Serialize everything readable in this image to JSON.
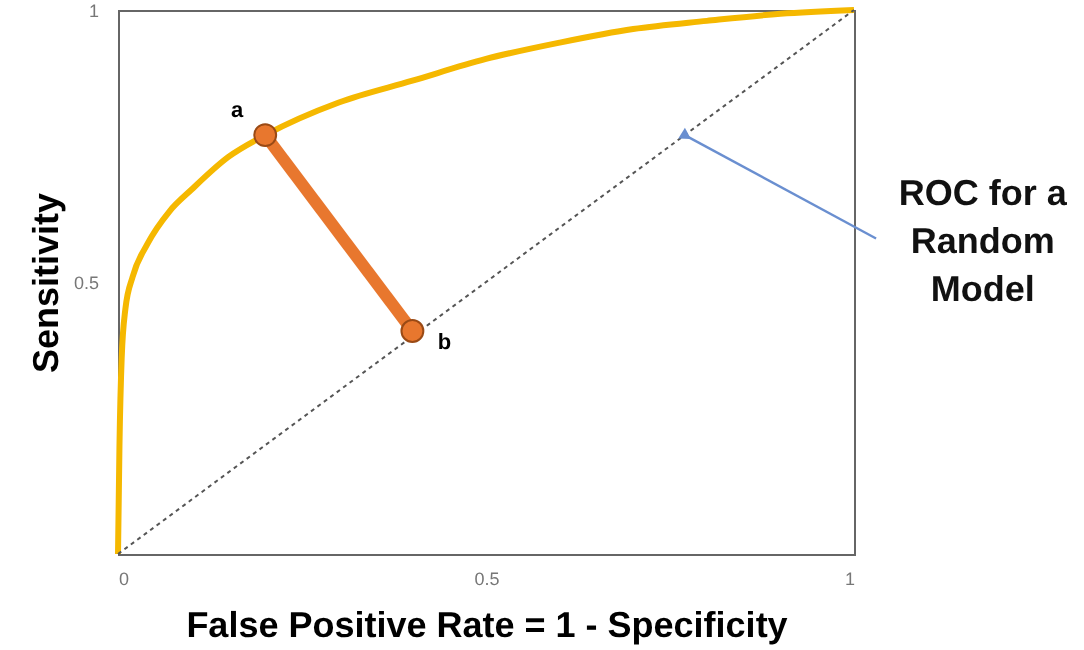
{
  "chart_data": {
    "type": "line",
    "xlabel": "False Positive Rate = 1 - Specificity",
    "ylabel": "Sensitivity",
    "xlim": [
      0,
      1
    ],
    "ylim": [
      0,
      1
    ],
    "xticks": [
      0,
      0.5,
      1
    ],
    "yticks": [
      0.5,
      1
    ],
    "grid": false,
    "series": [
      {
        "color": "#f5b800",
        "line_style": "solid",
        "marker": "none",
        "x": [
          0,
          0.002,
          0.005,
          0.01,
          0.02,
          0.04,
          0.07,
          0.1,
          0.15,
          0.2,
          0.3,
          0.4,
          0.5,
          0.6,
          0.7,
          0.8,
          0.9,
          1
        ],
        "values": [
          0,
          0.2,
          0.36,
          0.45,
          0.51,
          0.57,
          0.63,
          0.67,
          0.73,
          0.77,
          0.83,
          0.87,
          0.91,
          0.94,
          0.965,
          0.98,
          0.993,
          1
        ]
      },
      {
        "color": "#555555",
        "line_style": "dotted",
        "marker": "none",
        "x": [
          0,
          1
        ],
        "values": [
          0,
          1
        ]
      },
      {
        "color": "#e8772e",
        "line_style": "solid",
        "marker": "circle",
        "x": [
          0.2,
          0.4
        ],
        "values": [
          0.77,
          0.41
        ]
      }
    ],
    "annotations": [
      {
        "text": "a",
        "x": 0.2,
        "y": 0.77
      },
      {
        "text": "b",
        "x": 0.4,
        "y": 0.41
      },
      {
        "text": "ROC for a Random Model",
        "x": 0.77,
        "y": 0.77
      }
    ]
  }
}
